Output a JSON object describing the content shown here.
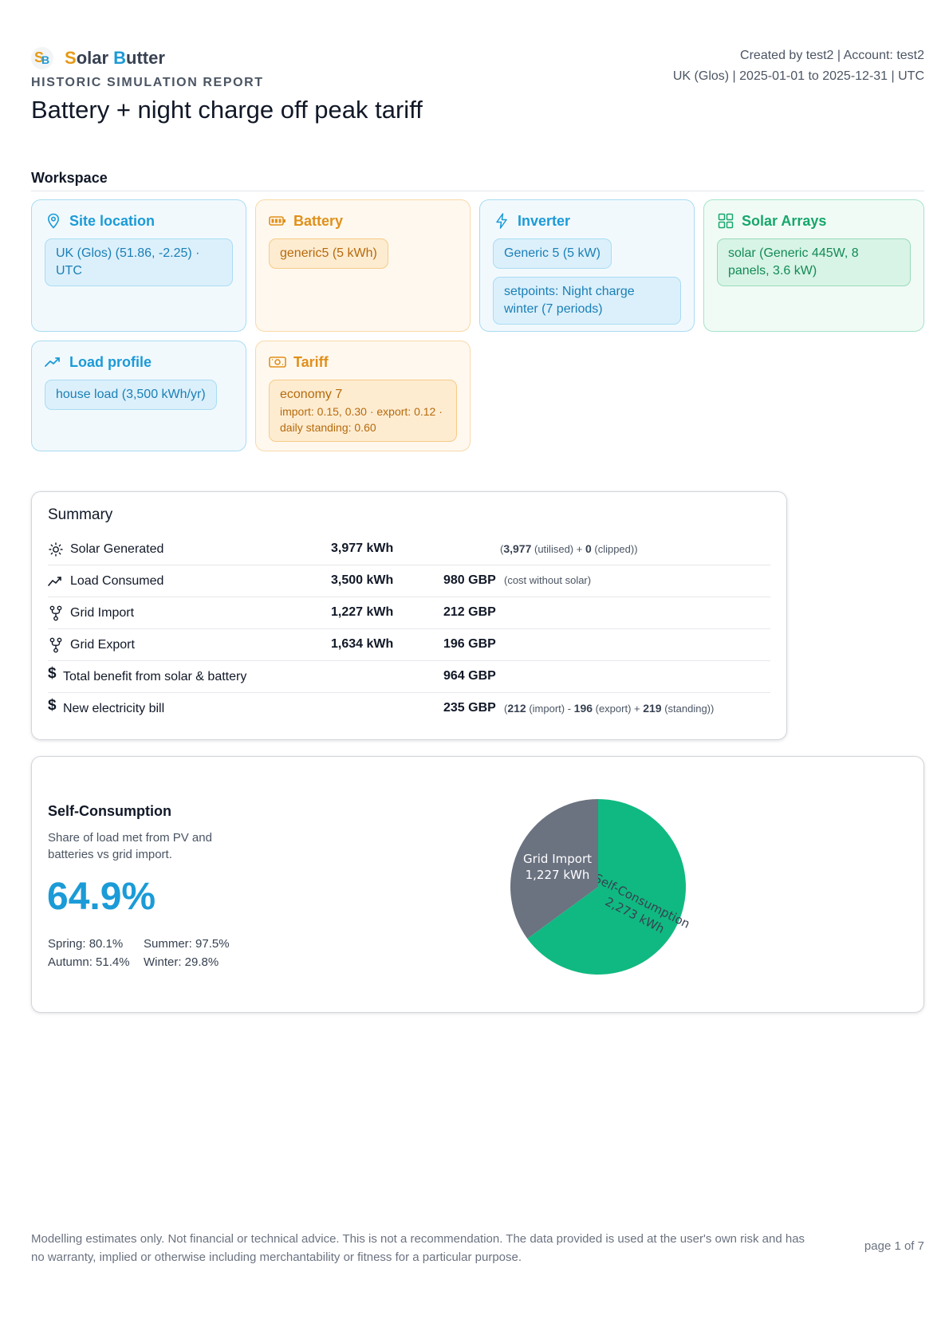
{
  "brand": {
    "name_s": "S",
    "name_olar": "olar ",
    "name_b": "B",
    "name_utter": "utter"
  },
  "header": {
    "kicker": "HISTORIC SIMULATION REPORT",
    "title": "Battery + night charge off peak tariff",
    "meta_line1": "Created by test2 | Account: test2",
    "meta_line2": "UK (Glos) | 2025-01-01 to 2025-12-31 | UTC"
  },
  "workspace": {
    "heading": "Workspace",
    "site": {
      "title": "Site location",
      "chip": "UK (Glos) (51.86, -2.25) · UTC",
      "icon": "map-pin-icon"
    },
    "battery": {
      "title": "Battery",
      "chip": "generic5 (5 kWh)",
      "icon": "battery-icon"
    },
    "inverter": {
      "title": "Inverter",
      "chip1": "Generic 5 (5 kW)",
      "chip2": "setpoints: Night charge winter (7 periods)",
      "icon": "lightning-icon"
    },
    "arrays": {
      "title": "Solar Arrays",
      "chip": "solar (Generic 445W, 8 panels, 3.6 kW)",
      "icon": "grid-icon"
    },
    "load": {
      "title": "Load profile",
      "chip": "house load (3,500 kWh/yr)",
      "icon": "trend-icon"
    },
    "tariff": {
      "title": "Tariff",
      "chip_main": "economy 7",
      "chip_detail": "import: 0.15, 0.30 · export: 0.12 · daily standing: 0.60",
      "icon": "banknote-icon"
    },
    "colors": {
      "blue": "#1b9bd7",
      "orange": "#e0901a",
      "green": "#17a76b"
    }
  },
  "summary": {
    "title": "Summary",
    "rows": [
      {
        "label": "Solar Generated",
        "kwh": "3,977 kWh",
        "gbp": "",
        "note_open": "(",
        "note_b1": "3,977",
        "note_t1": " (utilised) + ",
        "note_b2": "0",
        "note_t2": " (clipped))",
        "icon": "sun-icon"
      },
      {
        "label": "Load Consumed",
        "kwh": "3,500 kWh",
        "gbp": "980 GBP",
        "note": "(cost without solar)",
        "icon": "trend-icon"
      },
      {
        "label": "Grid Import",
        "kwh": "1,227 kWh",
        "gbp": "212 GBP",
        "icon": "fork-icon"
      },
      {
        "label": "Grid Export",
        "kwh": "1,634 kWh",
        "gbp": "196 GBP",
        "icon": "fork-icon"
      },
      {
        "label": "Total benefit from solar & battery",
        "kwh": "",
        "gbp": "964 GBP",
        "icon": "dollar-icon"
      },
      {
        "label": "New electricity bill",
        "kwh": "",
        "gbp": "235 GBP",
        "note_open": "(",
        "note_b1": "212",
        "note_t1": " (import) - ",
        "note_b2": "196",
        "note_t2": " (export) + ",
        "note_b3": "219",
        "note_t3": " (standing))",
        "icon": "dollar-icon"
      }
    ]
  },
  "self_consumption": {
    "title": "Self-Consumption",
    "description": "Share of load met from PV and batteries vs grid import.",
    "percent": "64.9%",
    "spring": "Spring: 80.1%",
    "summer": "Summer: 97.5%",
    "autumn": "Autumn: 51.4%",
    "winter": "Winter: 29.8%"
  },
  "chart_data": {
    "type": "pie",
    "categories": [
      "Self-Consumption",
      "Grid Import"
    ],
    "values": [
      2273,
      1227
    ],
    "units": "kWh",
    "labels": [
      {
        "name": "Self-Consumption",
        "value": "2,273 kWh"
      },
      {
        "name": "Grid Import",
        "value": "1,227 kWh"
      }
    ],
    "colors": [
      "#10b981",
      "#6b7280"
    ]
  },
  "footer": {
    "disclaimer": "Modelling estimates only. Not financial or technical advice. This is not a recommendation. The data provided is used at the user's own risk and has no warranty, implied or otherwise including merchantability or fitness for a particular purpose.",
    "page": "page 1 of 7"
  }
}
